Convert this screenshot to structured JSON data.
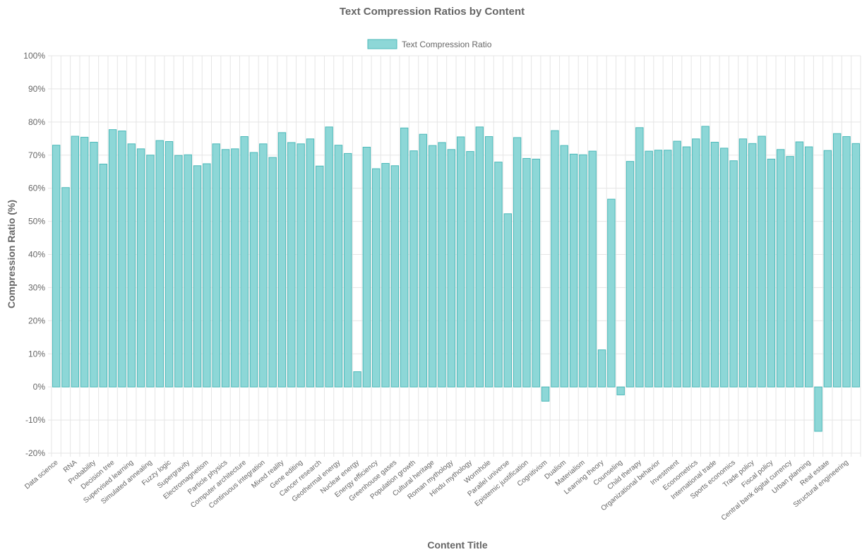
{
  "chart_data": {
    "type": "bar",
    "title": "Text Compression Ratios by Content",
    "xlabel": "Content Title",
    "ylabel": "Compression Ratio (%)",
    "ylim": [
      -20,
      100
    ],
    "y_tick_step": 10,
    "y_tick_suffix": "%",
    "grid": true,
    "legend_position": "top-center",
    "colors": {
      "bar_fill": "#8dd7d7",
      "bar_stroke": "#4bb9b9"
    },
    "series": [
      {
        "name": "Text Compression Ratio",
        "values": [
          73.0,
          60.2,
          75.7,
          75.4,
          73.9,
          67.3,
          77.7,
          77.3,
          73.4,
          71.9,
          70.0,
          74.4,
          74.1,
          69.9,
          70.1,
          66.8,
          67.4,
          73.4,
          71.7,
          71.9,
          75.6,
          70.8,
          73.4,
          69.3,
          76.8,
          73.8,
          73.4,
          74.9,
          66.7,
          78.5,
          73.0,
          70.5,
          4.6,
          72.4,
          65.9,
          67.5,
          66.8,
          78.2,
          71.3,
          76.3,
          72.9,
          73.8,
          71.7,
          75.5,
          71.1,
          78.5,
          75.6,
          67.9,
          52.3,
          75.3,
          69.0,
          68.8,
          -4.3,
          77.4,
          72.9,
          70.3,
          70.1,
          71.2,
          11.2,
          56.7,
          -2.4,
          68.1,
          78.3,
          71.2,
          71.5,
          71.5,
          74.2,
          72.5,
          74.9,
          78.7,
          73.9,
          72.1,
          68.3,
          74.9,
          73.5,
          75.7,
          68.8,
          71.7,
          69.6,
          74.0,
          72.5,
          -13.4,
          71.4,
          76.5,
          75.6,
          73.5
        ]
      }
    ],
    "categories": [
      "Data science",
      "",
      "RNA",
      "",
      "Probability",
      "",
      "Decision tree",
      "",
      "Supervised learning",
      "",
      "Simulated annealing",
      "",
      "Fuzzy logic",
      "",
      "Supergravity",
      "",
      "Electromagnetism",
      "",
      "Particle physics",
      "",
      "Computer architecture",
      "",
      "Continuous integration",
      "",
      "Mixed reality",
      "",
      "Gene editing",
      "",
      "Cancer research",
      "",
      "Geothermal energy",
      "",
      "Nuclear energy",
      "",
      "Energy efficiency",
      "",
      "Greenhouse gases",
      "",
      "Population growth",
      "",
      "Cultural heritage",
      "",
      "Roman mythology",
      "",
      "Hindu mythology",
      "",
      "Wormhole",
      "",
      "Parallel universe",
      "",
      "Epistemic justification",
      "",
      "Cognitivism",
      "",
      "Dualism",
      "",
      "Materialism",
      "",
      "Learning theory",
      "",
      "Counseling",
      "",
      "Child therapy",
      "",
      "Organizational behavior",
      "",
      "Investment",
      "",
      "Econometrics",
      "",
      "International trade",
      "",
      "Sports economics",
      "",
      "Trade policy",
      "",
      "Fiscal policy",
      "",
      "Central bank digital currency",
      "",
      "Urban planning",
      "",
      "Real estate",
      "",
      "Structural engineering",
      ""
    ]
  }
}
